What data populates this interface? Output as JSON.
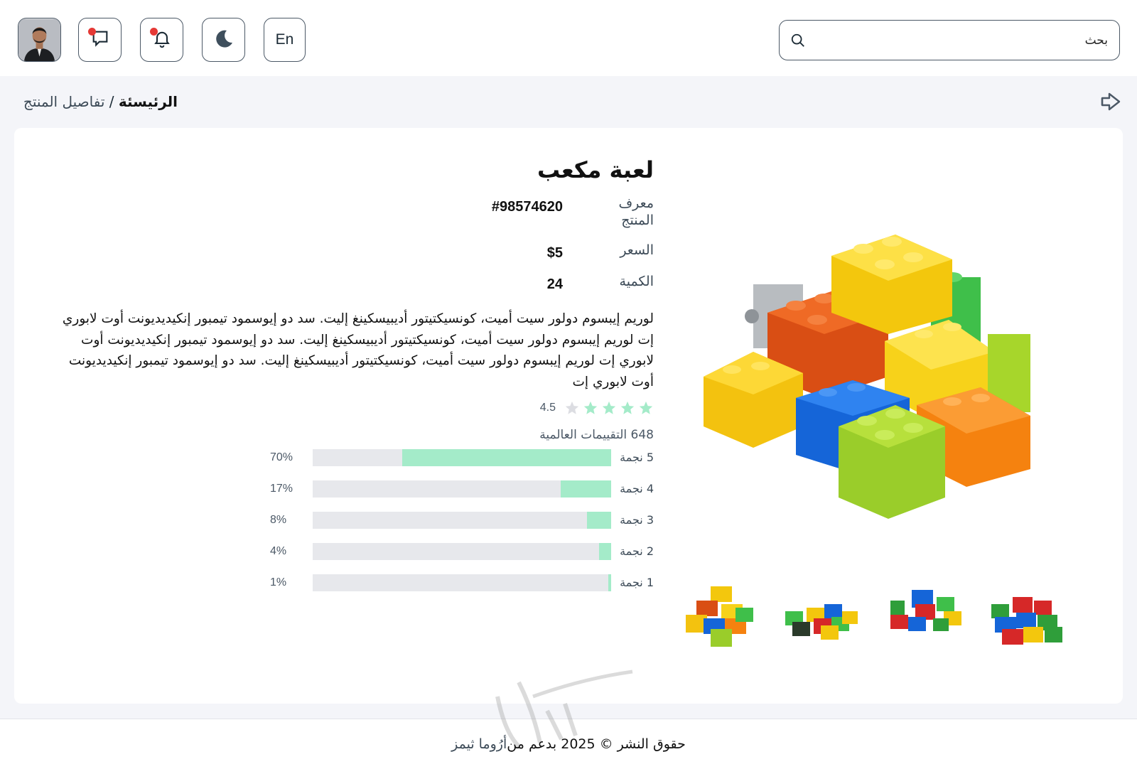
{
  "header": {
    "search_placeholder": "بحث",
    "language_label": "En",
    "icons": [
      "search-icon",
      "moon-icon",
      "bell-icon",
      "chat-icon",
      "avatar"
    ]
  },
  "breadcrumb": {
    "home": "الرئيسئة",
    "separator": "/",
    "current": "تفاصيل المنتج"
  },
  "product": {
    "title": "لعبة مكعب",
    "id_label": "معرف المنتج",
    "id_value": "#98574620",
    "price_label": "السعر",
    "price_value": "$5",
    "quantity_label": "الكمية",
    "quantity_value": "24",
    "description": "لوريم إيبسوم دولور سيت أميت، كونسيكتيتور أديبيسكينغ إليت. سد دو إيوسمود تيمبور إنكيديديونت أوت لابوري إت لوريم إيبسوم دولور سيت أميت، كونسيكتيتور أديبيسكينغ إليت. سد دو إيوسمود تيمبور إنكيديديونت أوت لابوري إت لوريم إيبسوم دولور سيت أميت، كونسيكتيتور أديبيسكينغ إليت. سد دو إيوسمود تيمبور إنكيديديونت أوت لابوري إت",
    "rating": 4.5,
    "rating_text": "4.5",
    "total_ratings": "648 التقييمات العالمية",
    "star_color": "#a4ebc9",
    "breakdown": [
      {
        "label": "5 نجمة",
        "percent": 70,
        "percent_text": "70%"
      },
      {
        "label": "4 نجمة",
        "percent": 17,
        "percent_text": "17%"
      },
      {
        "label": "3 نجمة",
        "percent": 8,
        "percent_text": "8%"
      },
      {
        "label": "2 نجمة",
        "percent": 4,
        "percent_text": "4%"
      },
      {
        "label": "1 نجمة",
        "percent": 1,
        "percent_text": "1%"
      }
    ]
  },
  "footer": {
    "text": "حقوق النشر © 2025 بدعم من ",
    "brand": "أرُوما ثيمز"
  },
  "colors": {
    "accent": "#a4ebc9",
    "border": "#4b5866",
    "notification_dot": "#e53935",
    "background": "#f4f5f9"
  }
}
